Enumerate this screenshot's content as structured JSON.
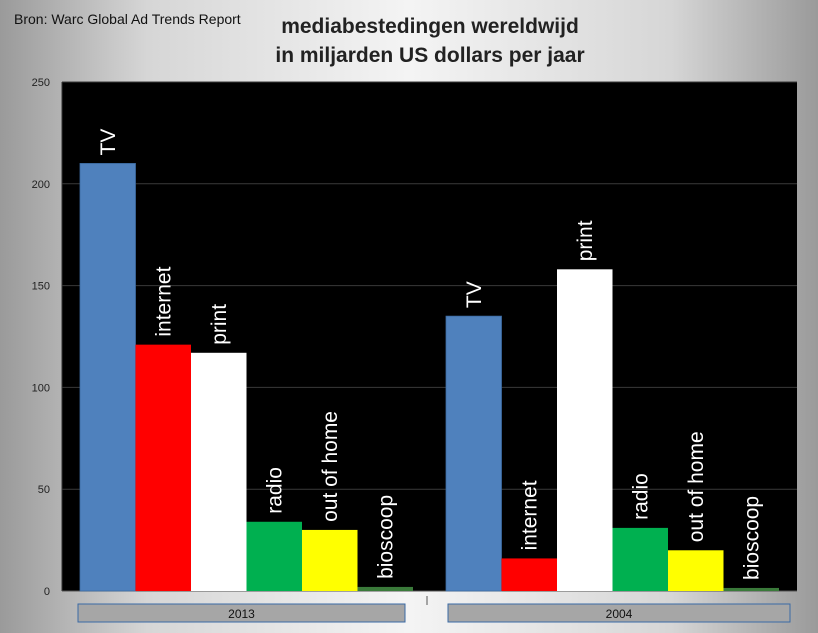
{
  "source": "Bron: Warc Global Ad Trends Report",
  "chart_data": {
    "type": "bar",
    "title_lines": [
      "mediabestedingen wereldwijd",
      "in miljarden US dollars per jaar"
    ],
    "ylim": [
      0,
      250
    ],
    "yticks": [
      0,
      50,
      100,
      150,
      200,
      250
    ],
    "grid": true,
    "series_labels": [
      "TV",
      "internet",
      "print",
      "radio",
      "out of home",
      "bioscoop"
    ],
    "groups": [
      {
        "category": "2013",
        "values": [
          210,
          121,
          117,
          34,
          30,
          2
        ]
      },
      {
        "category": "2004",
        "values": [
          135,
          16,
          158,
          31,
          20,
          1.5
        ]
      }
    ],
    "colors": [
      "#4F81BD",
      "#FF0000",
      "#FFFFFF",
      "#00B050",
      "#FFFF00",
      "#3a7a3a"
    ]
  }
}
